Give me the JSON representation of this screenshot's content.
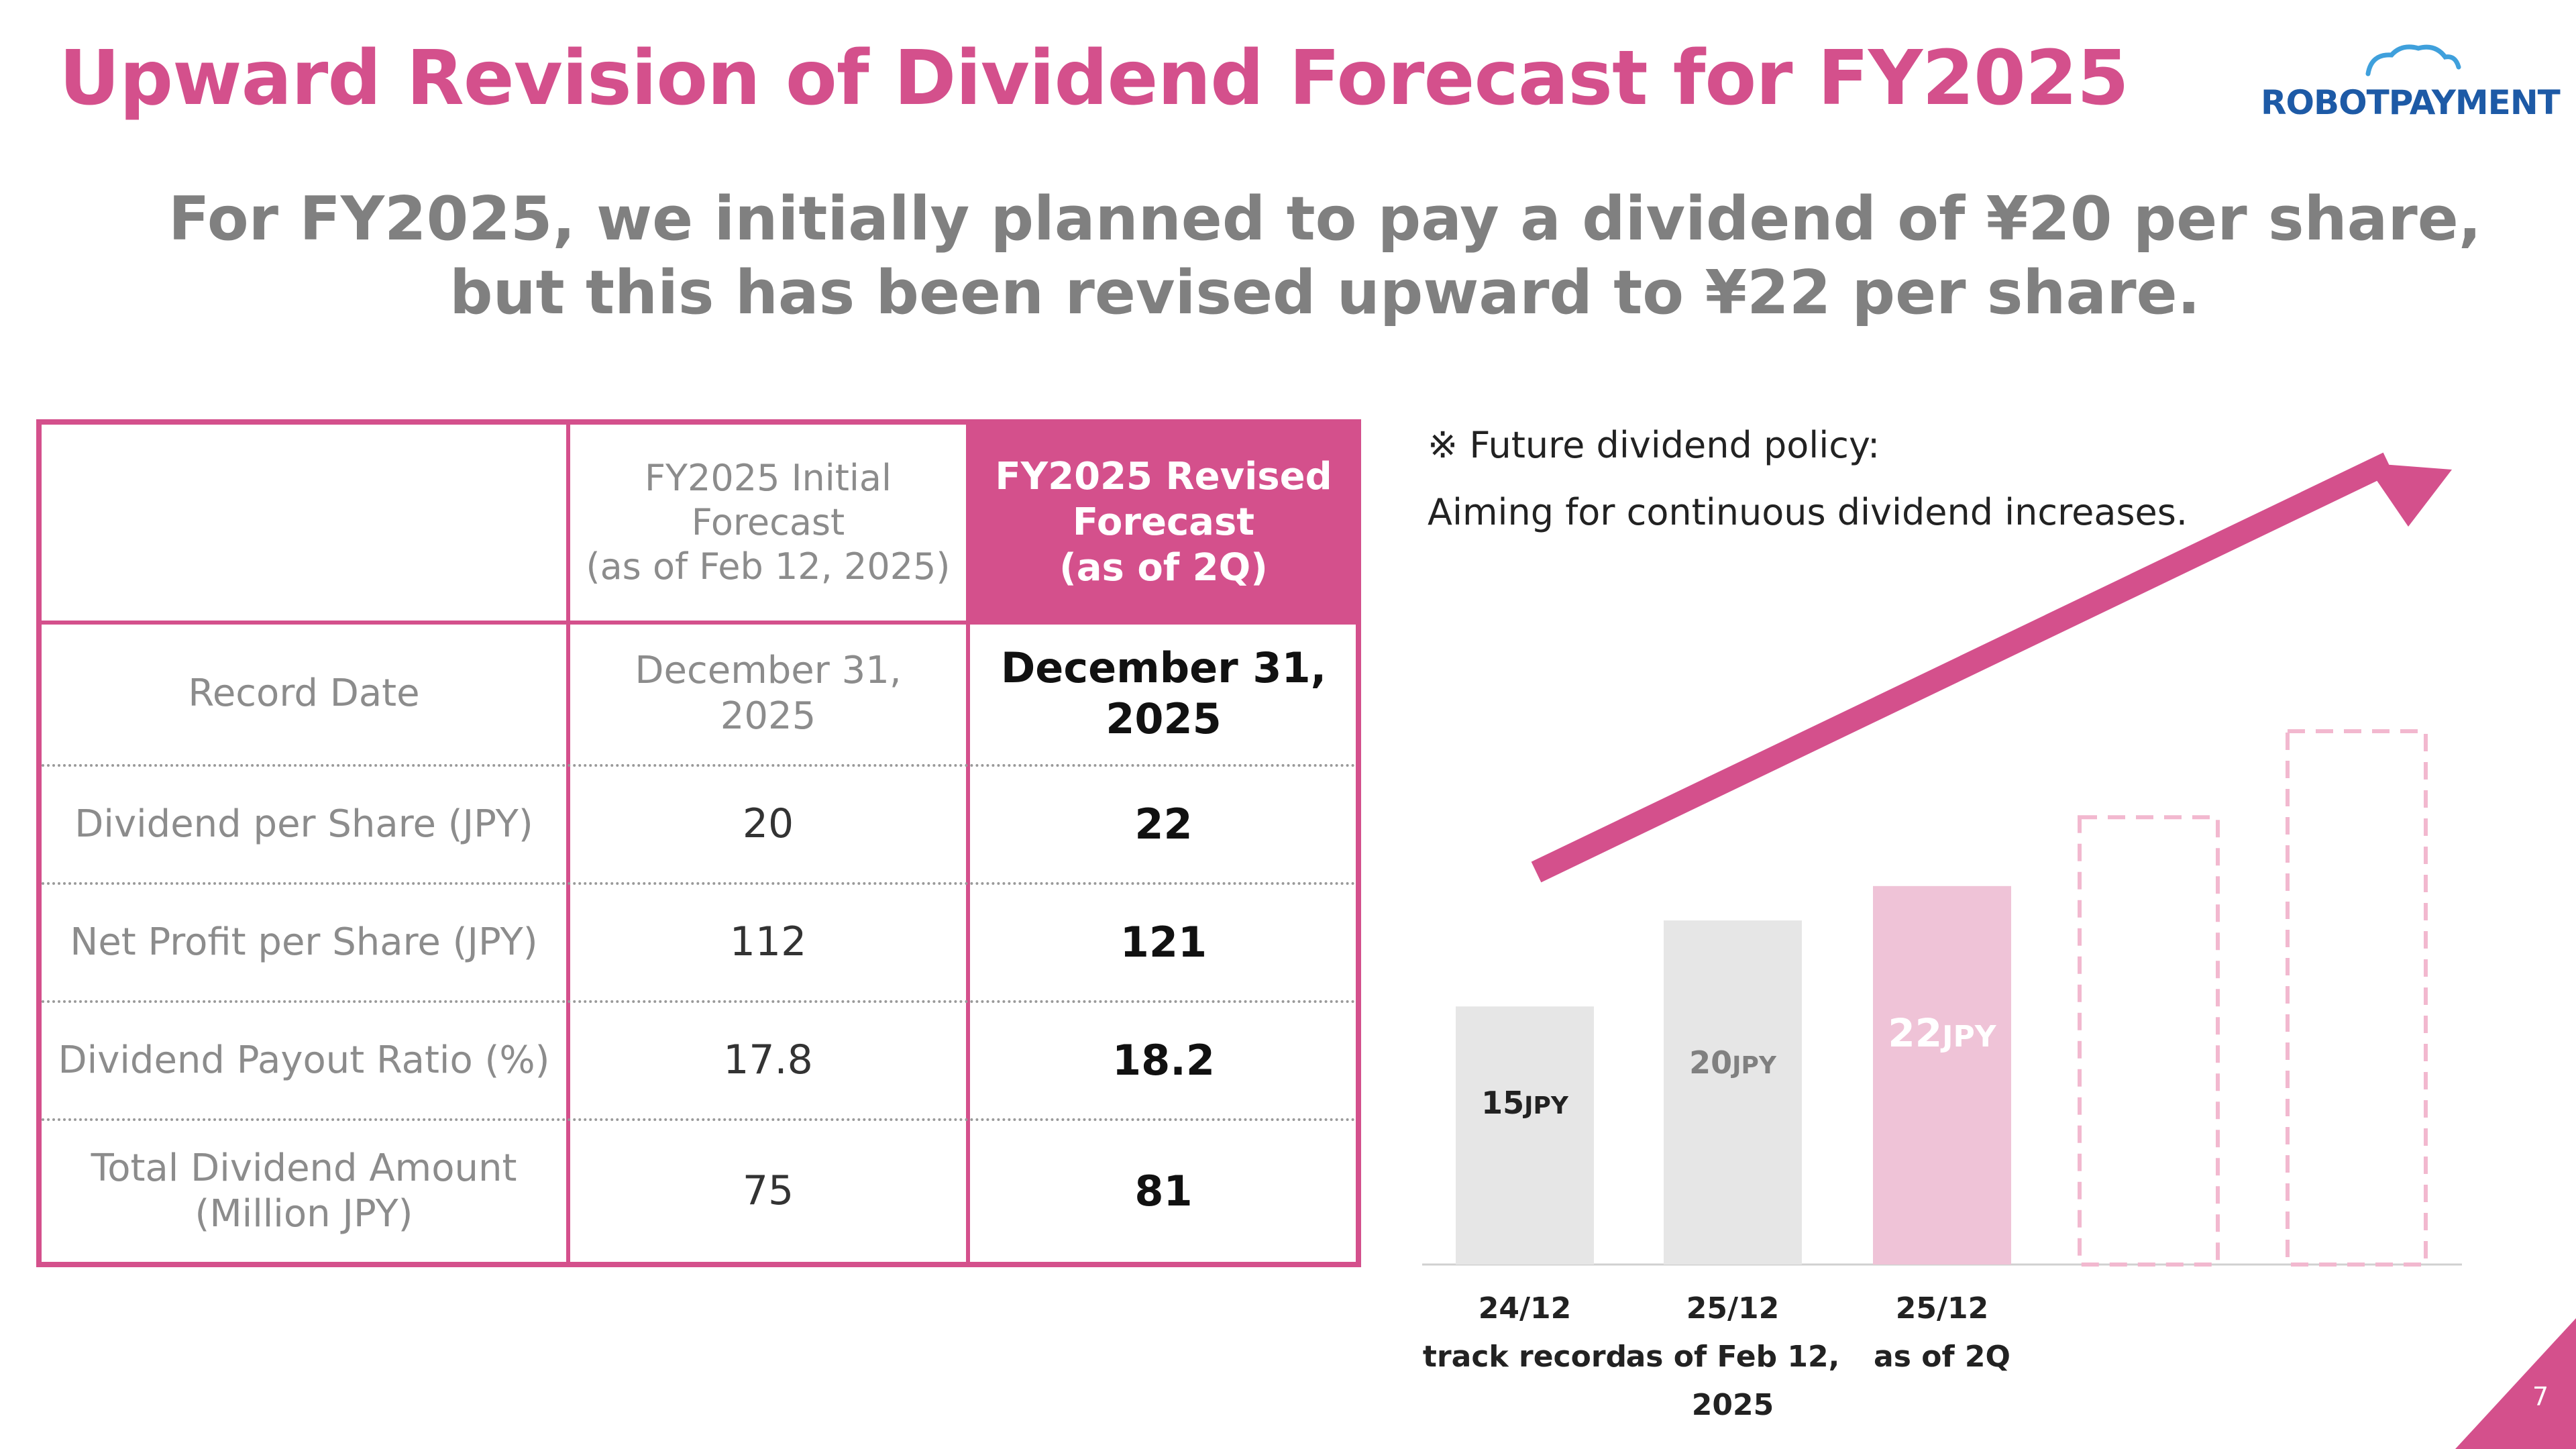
{
  "title": "Upward Revision of Dividend Forecast for FY2025",
  "logo": {
    "word1": "ROBOT",
    "word2": "PAYMENT"
  },
  "subtitle": {
    "line1": "For FY2025, we initially planned to pay a dividend of ¥20 per share,",
    "line2": "but this has been revised upward to ¥22 per share."
  },
  "table": {
    "headers": {
      "initial": [
        "FY2025 Initial",
        "Forecast",
        "(as of Feb 12, 2025)"
      ],
      "revised": [
        "FY2025 Revised",
        "Forecast",
        "(as of 2Q)"
      ]
    },
    "rows": [
      {
        "label": [
          "Record Date"
        ],
        "initial": [
          "December 31,",
          "2025"
        ],
        "revised": [
          "December 31,",
          "2025"
        ]
      },
      {
        "label": [
          "Dividend per Share (JPY)"
        ],
        "initial": [
          "20"
        ],
        "revised": [
          "22"
        ]
      },
      {
        "label": [
          "Net Profit per Share (JPY)"
        ],
        "initial": [
          "112"
        ],
        "revised": [
          "121"
        ]
      },
      {
        "label": [
          "Dividend Payout Ratio (%)"
        ],
        "initial": [
          "17.8"
        ],
        "revised": [
          "18.2"
        ]
      },
      {
        "label": [
          "Total Dividend Amount",
          "(Million JPY)"
        ],
        "initial": [
          "75"
        ],
        "revised": [
          "81"
        ]
      }
    ]
  },
  "policy": {
    "line1": "※ Future dividend policy:",
    "line2": "Aiming for continuous dividend increases."
  },
  "chart_data": {
    "type": "bar",
    "categories": [
      [
        "24/12",
        "track record"
      ],
      [
        "25/12",
        "as of Feb 12,",
        "2025"
      ],
      [
        "25/12",
        "as of 2Q"
      ],
      [
        "",
        ""
      ],
      [
        "",
        ""
      ]
    ],
    "values": [
      15,
      20,
      22,
      null,
      null
    ],
    "value_labels": [
      "15",
      "20",
      "22",
      "",
      ""
    ],
    "unit": "JPY",
    "placeholder_values": [
      null,
      null,
      null,
      26,
      31
    ],
    "colors": {
      "bar_gray": "#e6e6e6",
      "bar_pink": "#efc3d7",
      "placeholder_dash": "#f2b8cf",
      "arrow": "#d4508c",
      "label_dark": "#222222",
      "label_gray": "#808080",
      "label_white": "#ffffff"
    }
  },
  "page_number": "7",
  "colors": {
    "accent": "#d4508c",
    "logo_blue": "#1d5aa6"
  }
}
